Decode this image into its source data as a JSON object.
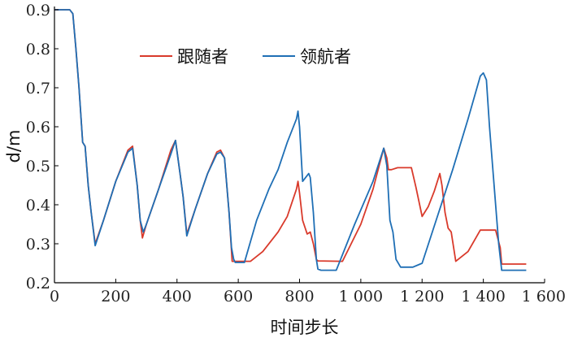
{
  "chart_data": {
    "type": "line",
    "xlabel": "时间步长",
    "ylabel": "d/m",
    "xlim": [
      0,
      1600
    ],
    "ylim": [
      0.2,
      0.9
    ],
    "xticks": [
      0,
      200,
      400,
      600,
      800,
      1000,
      1200,
      1400,
      1600
    ],
    "xtick_labels": [
      "0",
      "200",
      "400",
      "600",
      "800",
      "1 000",
      "1 200",
      "1 400",
      "1 600"
    ],
    "yticks": [
      0.2,
      0.3,
      0.4,
      0.5,
      0.6,
      0.7,
      0.8,
      0.9
    ],
    "ytick_labels": [
      "0.2",
      "0.3",
      "0.4",
      "0.5",
      "0.6",
      "0.7",
      "0.8",
      "0.9"
    ],
    "grid": false,
    "legend_position": "top-center",
    "series": [
      {
        "name": "跟随者",
        "color": "#d93a2b",
        "x": [
          0,
          50,
          60,
          70,
          80,
          92,
          100,
          110,
          120,
          133,
          160,
          200,
          240,
          255,
          270,
          280,
          287,
          300,
          340,
          380,
          395,
          410,
          420,
          432,
          460,
          500,
          530,
          542,
          555,
          570,
          580,
          640,
          680,
          730,
          760,
          790,
          795,
          800,
          810,
          825,
          835,
          845,
          855,
          860,
          940,
          1000,
          1040,
          1075,
          1085,
          1090,
          1100,
          1120,
          1165,
          1180,
          1200,
          1220,
          1240,
          1258,
          1265,
          1275,
          1285,
          1295,
          1310,
          1350,
          1390,
          1440,
          1455,
          1460,
          1540
        ],
        "values": [
          0.9,
          0.9,
          0.89,
          0.8,
          0.7,
          0.56,
          0.55,
          0.45,
          0.38,
          0.3,
          0.36,
          0.46,
          0.54,
          0.55,
          0.45,
          0.36,
          0.315,
          0.35,
          0.44,
          0.54,
          0.565,
          0.48,
          0.42,
          0.325,
          0.39,
          0.48,
          0.535,
          0.54,
          0.52,
          0.38,
          0.255,
          0.255,
          0.28,
          0.33,
          0.37,
          0.44,
          0.46,
          0.43,
          0.36,
          0.325,
          0.33,
          0.3,
          0.26,
          0.256,
          0.255,
          0.35,
          0.44,
          0.545,
          0.52,
          0.49,
          0.49,
          0.495,
          0.495,
          0.445,
          0.37,
          0.395,
          0.435,
          0.48,
          0.45,
          0.38,
          0.34,
          0.33,
          0.255,
          0.28,
          0.335,
          0.335,
          0.29,
          0.248,
          0.248
        ]
      },
      {
        "name": "领航者",
        "color": "#1f6fb5",
        "x": [
          0,
          50,
          60,
          70,
          80,
          92,
          100,
          110,
          120,
          133,
          160,
          200,
          240,
          255,
          270,
          280,
          290,
          300,
          340,
          380,
          395,
          410,
          420,
          432,
          460,
          500,
          530,
          542,
          555,
          570,
          578,
          585,
          590,
          620,
          660,
          700,
          730,
          760,
          790,
          795,
          800,
          810,
          820,
          830,
          835,
          845,
          855,
          860,
          870,
          920,
          980,
          1040,
          1075,
          1085,
          1095,
          1105,
          1115,
          1130,
          1170,
          1200,
          1250,
          1300,
          1350,
          1390,
          1400,
          1410,
          1420,
          1450,
          1460,
          1480,
          1540
        ],
        "values": [
          0.9,
          0.9,
          0.89,
          0.8,
          0.7,
          0.56,
          0.55,
          0.45,
          0.38,
          0.295,
          0.36,
          0.46,
          0.535,
          0.545,
          0.45,
          0.36,
          0.33,
          0.35,
          0.44,
          0.53,
          0.565,
          0.48,
          0.42,
          0.32,
          0.39,
          0.48,
          0.53,
          0.535,
          0.52,
          0.38,
          0.29,
          0.26,
          0.252,
          0.252,
          0.36,
          0.44,
          0.49,
          0.56,
          0.62,
          0.64,
          0.6,
          0.46,
          0.47,
          0.48,
          0.47,
          0.38,
          0.26,
          0.235,
          0.232,
          0.232,
          0.35,
          0.46,
          0.545,
          0.5,
          0.36,
          0.33,
          0.26,
          0.24,
          0.24,
          0.25,
          0.37,
          0.49,
          0.62,
          0.73,
          0.738,
          0.72,
          0.6,
          0.3,
          0.232,
          0.232,
          0.232
        ]
      }
    ]
  }
}
